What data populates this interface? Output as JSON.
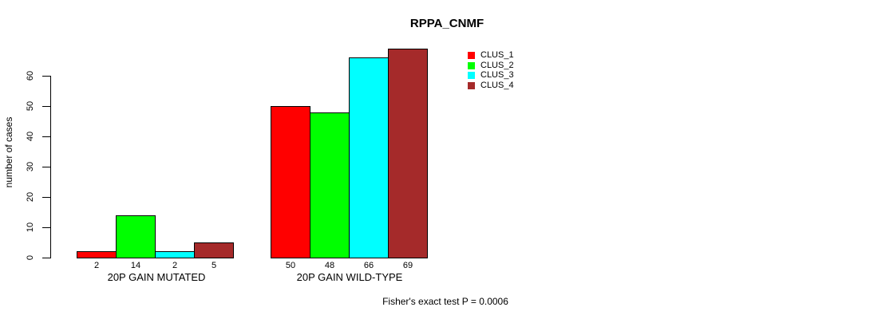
{
  "chart_data": {
    "type": "bar",
    "title": "RPPA_CNMF",
    "ylabel": "number of cases",
    "xlabel": "",
    "ylim": [
      0,
      60
    ],
    "yticks": [
      0,
      10,
      20,
      30,
      40,
      50,
      60
    ],
    "grid": false,
    "legend_position": "top-right-of-plot",
    "bar_value_labels_shown": true,
    "categories": [
      "20P GAIN MUTATED",
      "20P GAIN WILD-TYPE"
    ],
    "series": [
      {
        "name": "CLUS_1",
        "color": "#ff0000",
        "values": [
          2,
          50
        ]
      },
      {
        "name": "CLUS_2",
        "color": "#00ff00",
        "values": [
          14,
          48
        ]
      },
      {
        "name": "CLUS_3",
        "color": "#00ffff",
        "values": [
          2,
          66
        ]
      },
      {
        "name": "CLUS_4",
        "color": "#a52a2a",
        "values": [
          5,
          69
        ]
      }
    ],
    "annotation": "Fisher's exact test P = 0.0006"
  },
  "colors": {
    "axis": "#000000",
    "bar_border": "#000000",
    "background": "#ffffff"
  }
}
